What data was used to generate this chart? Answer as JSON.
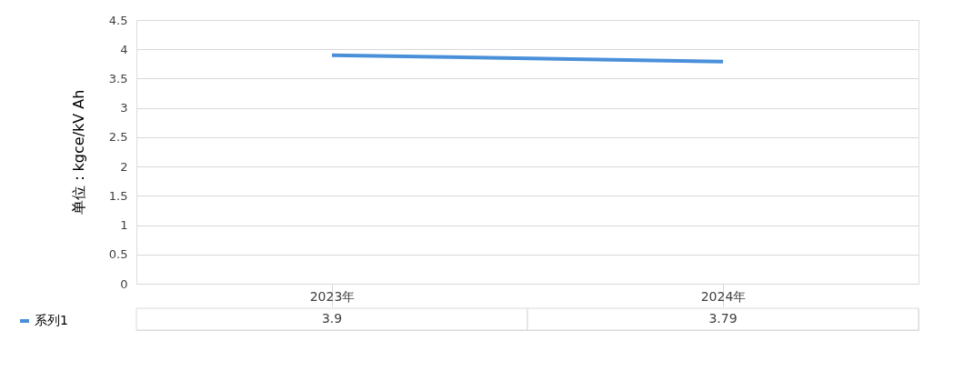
{
  "chart_data": {
    "type": "line",
    "ylabel": "单位：kgce/kV Ah",
    "categories": [
      "2023年",
      "2024年"
    ],
    "series": [
      {
        "name": "系列1",
        "color": "#4a90d9",
        "values": [
          3.9,
          3.79
        ]
      }
    ],
    "ylim": [
      0,
      4.5
    ],
    "yticks": [
      0,
      0.5,
      1,
      1.5,
      2,
      2.5,
      3,
      3.5,
      4,
      4.5
    ],
    "grid": "y",
    "legend": "bottom left",
    "data_labels": true,
    "marker": "none",
    "line_style": "solid"
  }
}
